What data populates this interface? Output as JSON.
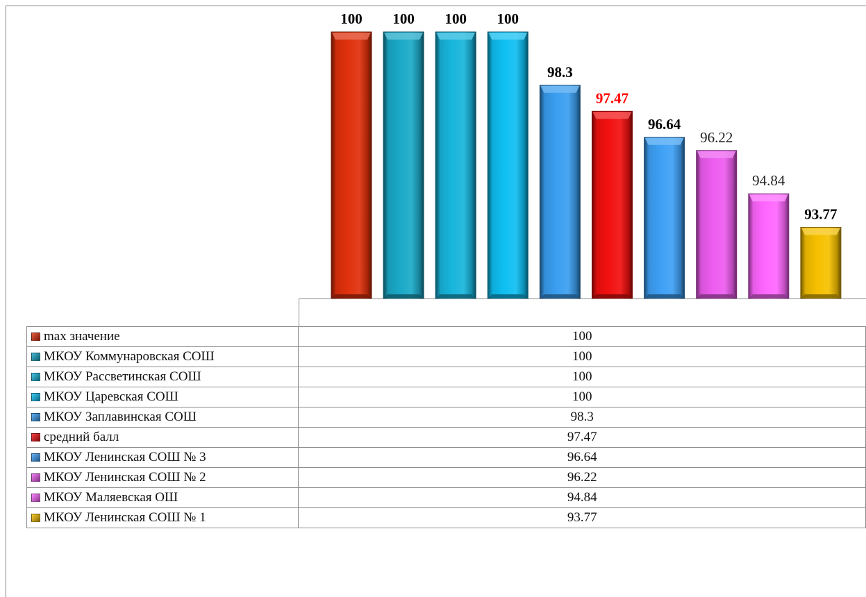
{
  "chart_data": {
    "type": "bar",
    "categories": [
      "max значение",
      "МКОУ Коммунаровская СОШ",
      "МКОУ Рассветинская СОШ",
      "МКОУ Царевская СОШ",
      "МКОУ Заплавинская СОШ",
      "средний балл",
      "МКОУ Ленинская СОШ № 3",
      "МКОУ Ленинская СОШ № 2",
      "МКОУ Маляевская ОШ",
      "МКОУ Ленинская СОШ № 1"
    ],
    "values": [
      100,
      100,
      100,
      100,
      98.3,
      97.47,
      96.64,
      96.22,
      94.84,
      93.77
    ],
    "value_labels": [
      "100",
      "100",
      "100",
      "100",
      "98.3",
      "97.47",
      "96.64",
      "96.22",
      "94.84",
      "93.77"
    ],
    "colors": [
      "#e0300c",
      "#1aa9c8",
      "#17b5dc",
      "#0fbff2",
      "#3a9ef0",
      "#f21010",
      "#3ea0f5",
      "#ee5cf0",
      "#ff66ff",
      "#f6c000"
    ],
    "label_colors": [
      "#000000",
      "#000000",
      "#000000",
      "#000000",
      "#000000",
      "#ff0000",
      "#000000",
      "#222222",
      "#222222",
      "#000000"
    ],
    "label_bold": [
      true,
      true,
      true,
      true,
      true,
      true,
      true,
      false,
      false,
      true
    ],
    "ylim": [
      91.5,
      100
    ],
    "legend": "data-table-below",
    "grid": false,
    "title": "",
    "xlabel": "",
    "ylabel": ""
  }
}
